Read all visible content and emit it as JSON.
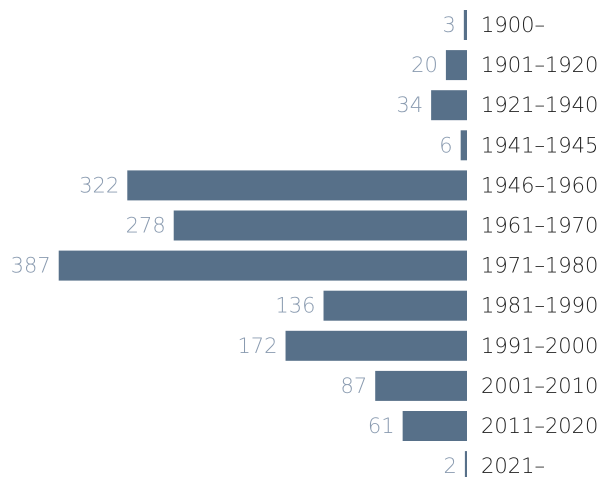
{
  "chart_data": {
    "type": "bar",
    "orientation": "horizontal",
    "categories": [
      "1900–",
      "1901–1920",
      "1921–1940",
      "1941–1945",
      "1946–1960",
      "1961–1970",
      "1971–1980",
      "1981–1990",
      "1991–2000",
      "2001–2010",
      "2011–2020",
      "2021–"
    ],
    "values": [
      3,
      20,
      34,
      6,
      322,
      278,
      387,
      136,
      172,
      87,
      61,
      2
    ],
    "color": "#577089"
  }
}
